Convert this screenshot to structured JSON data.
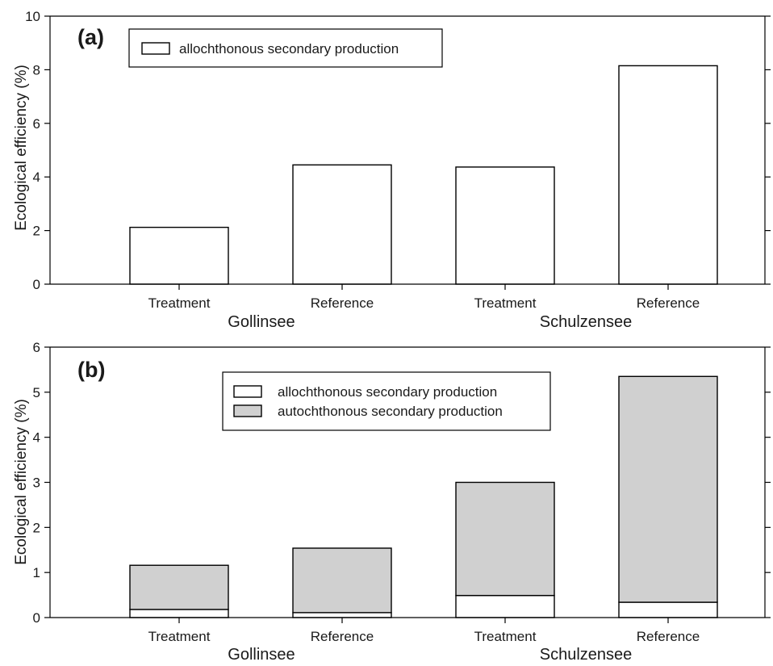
{
  "colors": {
    "allochthonous": "#ffffff",
    "autochthonous": "#d0d0d0",
    "stroke": "#000000"
  },
  "chart_data": [
    {
      "type": "bar",
      "panel_label": "(a)",
      "ylabel": "Ecological efficiency (%)",
      "ylim": [
        0,
        10
      ],
      "yticks": [
        0,
        2,
        4,
        6,
        8,
        10
      ],
      "categories": [
        "Treatment",
        "Reference",
        "Treatment",
        "Reference"
      ],
      "groups": [
        {
          "name": "Gollinsee",
          "categories": [
            "Treatment",
            "Reference"
          ]
        },
        {
          "name": "Schulzensee",
          "categories": [
            "Treatment",
            "Reference"
          ]
        }
      ],
      "series": [
        {
          "name": "allochthonous secondary production",
          "values": [
            2.12,
            4.45,
            4.37,
            8.15
          ]
        }
      ],
      "legend": "top-left"
    },
    {
      "type": "bar",
      "stacked": true,
      "panel_label": "(b)",
      "ylabel": "Ecological efficiency (%)",
      "ylim": [
        0,
        6
      ],
      "yticks": [
        0,
        1,
        2,
        3,
        4,
        5,
        6
      ],
      "categories": [
        "Treatment",
        "Reference",
        "Treatment",
        "Reference"
      ],
      "groups": [
        {
          "name": "Gollinsee",
          "categories": [
            "Treatment",
            "Reference"
          ]
        },
        {
          "name": "Schulzensee",
          "categories": [
            "Treatment",
            "Reference"
          ]
        }
      ],
      "series": [
        {
          "name": "allochthonous secondary production",
          "values": [
            0.18,
            0.11,
            0.49,
            0.34
          ]
        },
        {
          "name": "autochthonous secondary production",
          "values": [
            0.98,
            1.43,
            2.51,
            5.01
          ]
        }
      ],
      "legend": "top-center"
    }
  ]
}
